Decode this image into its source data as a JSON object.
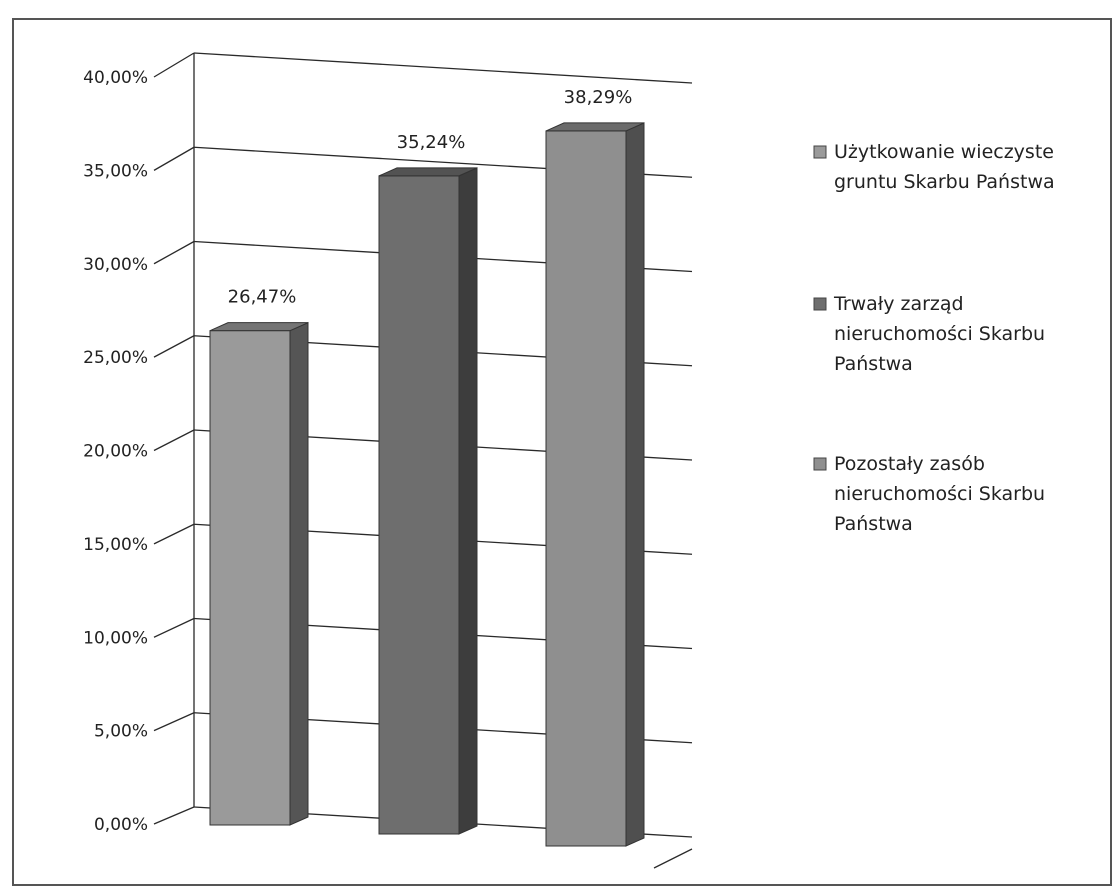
{
  "chart_data": {
    "type": "bar",
    "style": "3d-column",
    "categories": [
      "Użytkowanie wieczyste gruntu Skarbu Państwa",
      "Trwały zarząd nieruchomości Skarbu Państwa",
      "Pozostały zasób nieruchomości Skarbu Państwa"
    ],
    "values": [
      26.47,
      35.24,
      38.29
    ],
    "value_labels": [
      "26,47%",
      "35,24%",
      "38,29%"
    ],
    "ylim": [
      0,
      40
    ],
    "yticks": [
      0,
      5,
      10,
      15,
      20,
      25,
      30,
      35,
      40
    ],
    "ytick_labels": [
      "0,00%",
      "5,00%",
      "10,00%",
      "15,00%",
      "20,00%",
      "25,00%",
      "30,00%",
      "35,00%",
      "40,00%"
    ],
    "grid": true,
    "legend": {
      "placement": "right",
      "entries": [
        {
          "lines": [
            "Użytkowanie wieczyste",
            "gruntu Skarbu Państwa"
          ],
          "color": "#9a9a9a"
        },
        {
          "lines": [
            "Trwały zarząd",
            "nieruchomości Skarbu",
            "Państwa"
          ],
          "color": "#6e6e6e"
        },
        {
          "lines": [
            "Pozostały zasób",
            "nieruchomości Skarbu",
            "Państwa"
          ],
          "color": "#8f8f8f"
        }
      ]
    },
    "colors": [
      "#9a9a9a",
      "#6e6e6e",
      "#8f8f8f"
    ]
  }
}
